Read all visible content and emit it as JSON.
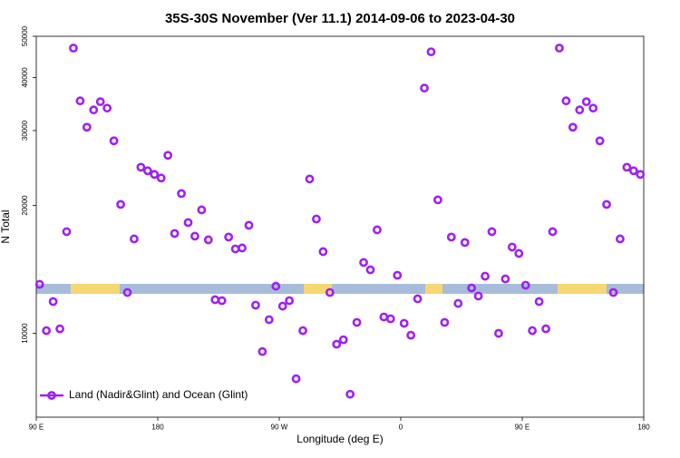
{
  "chart_data": {
    "type": "scatter",
    "title": "35S-30S November (Ver 11.1)   2014-09-06 to 2023-04-30",
    "xlabel": "Longitude (deg E)",
    "ylabel": "N Total",
    "xlim": [
      90,
      540
    ],
    "xticks": [
      {
        "value": 90,
        "label": "90 E"
      },
      180,
      {
        "value": 270,
        "label": "90 W"
      },
      {
        "value": 360,
        "label": "0"
      },
      {
        "value": 450,
        "label": "90 E"
      },
      {
        "value": 540,
        "label": "180"
      }
    ],
    "ylim": [
      6350,
      50000
    ],
    "ylog": true,
    "yticks": [
      10000,
      20000,
      30000,
      40000,
      50000
    ],
    "legend": "bottom-left",
    "series": [
      {
        "name": "Land (Nadir&Glint) and Ocean (Glint)",
        "color": "#a020f0",
        "x": [
          92.5,
          97.5,
          102.5,
          107.5,
          112.5,
          117.5,
          122.5,
          127.5,
          132.5,
          137.5,
          142.5,
          147.5,
          152.5,
          157.5,
          162.5,
          167.5,
          172.5,
          177.5,
          182.5,
          187.5,
          192.5,
          197.5,
          202.5,
          207.5,
          212.5,
          217.5,
          222.5,
          227.5,
          232.5,
          237.5,
          242.5,
          247.5,
          252.5,
          257.5,
          262.5,
          267.5,
          272.5,
          277.5,
          282.5,
          287.5,
          292.5,
          297.5,
          302.5,
          307.5,
          312.5,
          317.5,
          322.5,
          327.5,
          332.5,
          337.5,
          342.5,
          347.5,
          352.5,
          357.5,
          362.5,
          367.5,
          372.5,
          377.5,
          382.5,
          387.5,
          392.5,
          397.5,
          402.5,
          407.5,
          412.5,
          417.5,
          422.5,
          427.5,
          432.5,
          437.5,
          442.5,
          447.5,
          452.5,
          457.5,
          462.5,
          467.5,
          472.5,
          477.5,
          482.5,
          487.5,
          492.5,
          497.5,
          502.5,
          507.5,
          512.5,
          517.5,
          522.5,
          527.5,
          532.5,
          537.5
        ],
        "values": [
          13040,
          10150,
          11880,
          10250,
          17350,
          46900,
          35240,
          30550,
          33550,
          35080,
          33880,
          28380,
          20110,
          12480,
          16680,
          24600,
          24130,
          23660,
          23200,
          26240,
          17180,
          21330,
          18230,
          16930,
          19520,
          16600,
          12000,
          11940,
          16850,
          15800,
          15880,
          17960,
          11650,
          9060,
          10770,
          12910,
          11590,
          11940,
          7820,
          10150,
          23080,
          18580,
          15570,
          12480,
          9430,
          9660,
          7190,
          10610,
          14680,
          14110,
          17520,
          10930,
          10820,
          13700,
          10560,
          9900,
          12060,
          37760,
          45970,
          20610,
          10610,
          16850,
          11760,
          16360,
          12790,
          12240,
          13630,
          17350,
          10000,
          13430,
          15960,
          15420,
          12980,
          10150,
          11880,
          10250,
          17350,
          46900,
          35240,
          30550,
          33550,
          35080,
          33880,
          28380,
          20110,
          12480,
          16680,
          24600,
          24130,
          23660
        ]
      }
    ]
  }
}
